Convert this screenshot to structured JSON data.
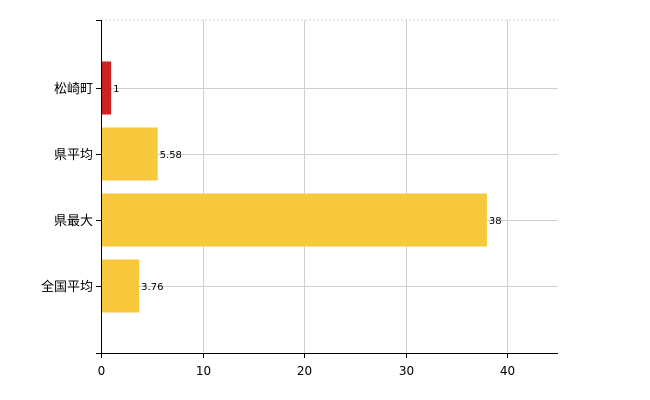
{
  "chart_data": {
    "type": "bar",
    "orientation": "horizontal",
    "categories": [
      "松崎町",
      "県平均",
      "県最大",
      "全国平均"
    ],
    "values": [
      1,
      5.58,
      38,
      3.76
    ],
    "data_labels": [
      "1",
      "5.58",
      "38",
      "3.76"
    ],
    "colors": [
      "#cc2222",
      "#f8c83c",
      "#f8c83c",
      "#f8c83c"
    ],
    "xlim": [
      0,
      45
    ],
    "xticks": [
      0,
      10,
      20,
      30,
      40
    ],
    "grid": true,
    "legend": "none"
  }
}
